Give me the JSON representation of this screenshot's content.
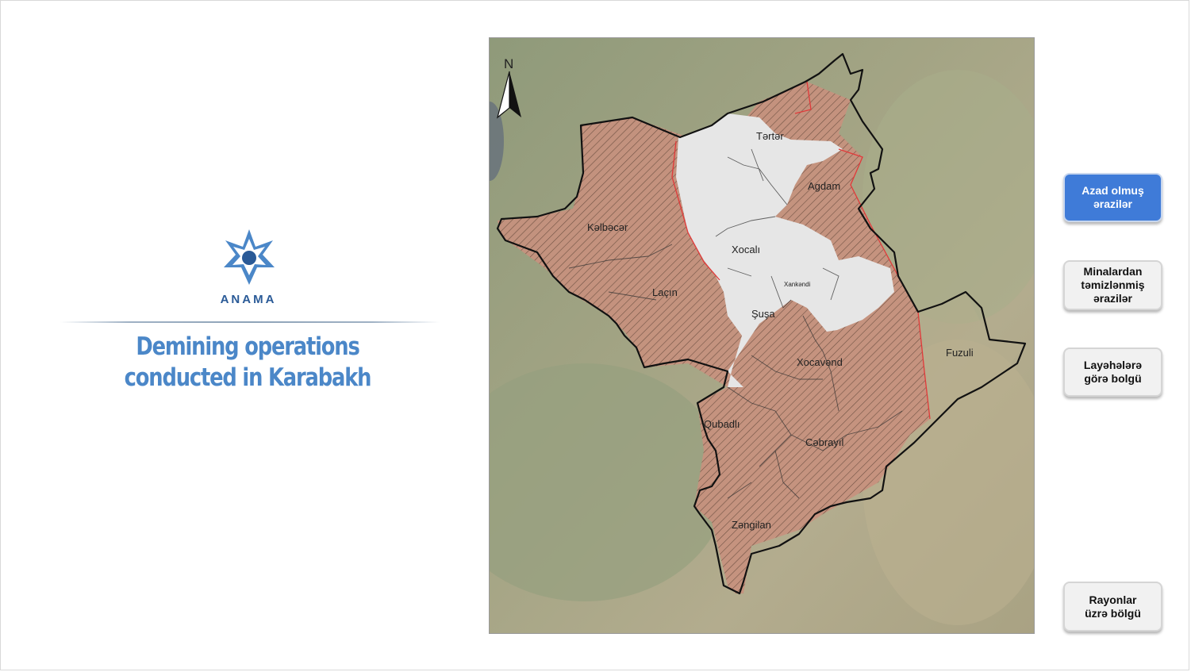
{
  "logo": {
    "name": "ANAMA",
    "icon": "anama-star-icon",
    "color": "#2a5a97"
  },
  "title": {
    "line1": "Demining operations",
    "line2": "conducted in Karabakh"
  },
  "map": {
    "north_label": "N",
    "districts": {
      "terter": "Tərtər",
      "agdam": "Agdam",
      "kelbecer": "Kəlbəcər",
      "xocali": "Xocalı",
      "xankendi": "Xankəndi",
      "lacin": "Laçın",
      "susa": "Şuşa",
      "xocavend": "Xocavənd",
      "fuzuli": "Fuzuli",
      "qubadli": "Qubadlı",
      "cebrayil": "Cəbrayıl",
      "zengilan": "Zəngilan"
    },
    "colors": {
      "liberated_fill": "#c98f7a",
      "liberated_border": "#e03a3a",
      "remaining_fill": "#e8e8e8",
      "outline": "#111111"
    }
  },
  "buttons": {
    "liberated": "Azad olmuş\nərazilər",
    "cleared": "Minalardan\ntəmizlənmiş\nərazilər",
    "projects": "Layəhələrə\ngörə bolgü",
    "districts": "Rayonlar\nüzrə bölgü",
    "active_color": "#3f7bd8"
  }
}
